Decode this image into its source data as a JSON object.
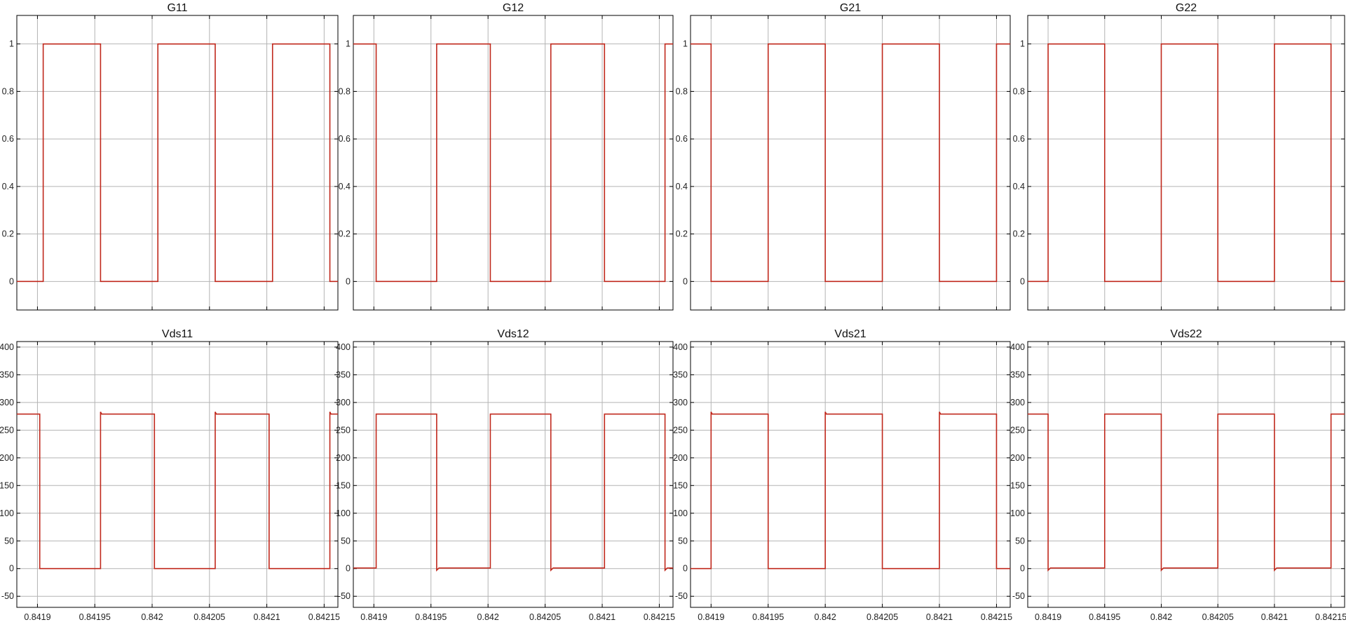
{
  "figure": {
    "background": "#ffffff",
    "trace_color": "#c0281c",
    "grid_color": "#b4b4b4",
    "axes_color": "#000000"
  },
  "chart_data": [
    {
      "type": "line",
      "title": "G11",
      "xlim": [
        0.841882,
        0.842162
      ],
      "ylim": [
        -0.12,
        1.12
      ],
      "yticks": [
        "0",
        "0.2",
        "0.4",
        "0.6",
        "0.8",
        "1"
      ],
      "xgrid": [
        0.8419,
        0.84195,
        0.842,
        0.84205,
        0.8421,
        0.84215
      ],
      "show_xtick_labels": false,
      "series": [
        {
          "x": [
            0.841882,
            0.841905,
            0.841905,
            0.841955,
            0.841955,
            0.842005,
            0.842005,
            0.842055,
            0.842055,
            0.842105,
            0.842105,
            0.842155,
            0.842155,
            0.842162
          ],
          "y": [
            0,
            0,
            1,
            1,
            0,
            0,
            1,
            1,
            0,
            0,
            1,
            1,
            0,
            0
          ]
        }
      ]
    },
    {
      "type": "line",
      "title": "G12",
      "xlim": [
        0.841882,
        0.842162
      ],
      "ylim": [
        -0.12,
        1.12
      ],
      "yticks": [
        "0",
        "0.2",
        "0.4",
        "0.6",
        "0.8",
        "1"
      ],
      "xgrid": [
        0.8419,
        0.84195,
        0.842,
        0.84205,
        0.8421,
        0.84215
      ],
      "show_xtick_labels": false,
      "series": [
        {
          "x": [
            0.841882,
            0.841902,
            0.841902,
            0.841955,
            0.841955,
            0.842002,
            0.842002,
            0.842055,
            0.842055,
            0.842102,
            0.842102,
            0.842155,
            0.842155,
            0.842162
          ],
          "y": [
            1,
            1,
            0,
            0,
            1,
            1,
            0,
            0,
            1,
            1,
            0,
            0,
            1,
            1
          ]
        }
      ]
    },
    {
      "type": "line",
      "title": "G21",
      "xlim": [
        0.841882,
        0.842162
      ],
      "ylim": [
        -0.12,
        1.12
      ],
      "yticks": [
        "0",
        "0.2",
        "0.4",
        "0.6",
        "0.8",
        "1"
      ],
      "xgrid": [
        0.8419,
        0.84195,
        0.842,
        0.84205,
        0.8421,
        0.84215
      ],
      "show_xtick_labels": false,
      "series": [
        {
          "x": [
            0.841882,
            0.8419,
            0.8419,
            0.84195,
            0.84195,
            0.842,
            0.842,
            0.84205,
            0.84205,
            0.8421,
            0.8421,
            0.84215,
            0.84215,
            0.842162
          ],
          "y": [
            1,
            1,
            0,
            0,
            1,
            1,
            0,
            0,
            1,
            1,
            0,
            0,
            1,
            1
          ]
        }
      ]
    },
    {
      "type": "line",
      "title": "G22",
      "xlim": [
        0.841882,
        0.842162
      ],
      "ylim": [
        -0.12,
        1.12
      ],
      "yticks": [
        "0",
        "0.2",
        "0.4",
        "0.6",
        "0.8",
        "1"
      ],
      "xgrid": [
        0.8419,
        0.84195,
        0.842,
        0.84205,
        0.8421,
        0.84215
      ],
      "show_xtick_labels": false,
      "series": [
        {
          "x": [
            0.841882,
            0.8419,
            0.8419,
            0.84195,
            0.84195,
            0.842,
            0.842,
            0.84205,
            0.84205,
            0.8421,
            0.8421,
            0.84215,
            0.84215,
            0.842162
          ],
          "y": [
            0,
            0,
            1,
            1,
            0,
            0,
            1,
            1,
            0,
            0,
            1,
            1,
            0,
            0
          ]
        }
      ]
    },
    {
      "type": "line",
      "title": "Vds11",
      "xlim": [
        0.841882,
        0.842162
      ],
      "ylim": [
        -70,
        410
      ],
      "yticks": [
        "-50",
        "0",
        "50",
        "100",
        "150",
        "200",
        "250",
        "300",
        "350",
        "400"
      ],
      "xgrid": [
        0.8419,
        0.84195,
        0.842,
        0.84205,
        0.8421,
        0.84215
      ],
      "xticklabels": [
        "0.8419",
        "0.84195",
        "0.842",
        "0.84205",
        "0.8421",
        "0.84215"
      ],
      "show_xtick_labels": true,
      "series": [
        {
          "x": [
            0.841882,
            0.841902,
            0.841902,
            0.841955,
            0.841955,
            0.841956,
            0.842002,
            0.842002,
            0.842055,
            0.842055,
            0.842056,
            0.842102,
            0.842102,
            0.842155,
            0.842155,
            0.842156,
            0.842162
          ],
          "y": [
            279,
            279,
            0,
            0,
            283,
            279,
            279,
            0,
            0,
            283,
            279,
            279,
            0,
            0,
            283,
            279,
            279
          ]
        }
      ]
    },
    {
      "type": "line",
      "title": "Vds12",
      "xlim": [
        0.841882,
        0.842162
      ],
      "ylim": [
        -70,
        410
      ],
      "yticks": [
        "-50",
        "0",
        "50",
        "100",
        "150",
        "200",
        "250",
        "300",
        "350",
        "400"
      ],
      "xgrid": [
        0.8419,
        0.84195,
        0.842,
        0.84205,
        0.8421,
        0.84215
      ],
      "xticklabels": [
        "0.8419",
        "0.84195",
        "0.842",
        "0.84205",
        "0.8421",
        "0.84215"
      ],
      "show_xtick_labels": true,
      "series": [
        {
          "x": [
            0.841882,
            0.841902,
            0.841902,
            0.841955,
            0.841955,
            0.841957,
            0.842002,
            0.842002,
            0.842055,
            0.842055,
            0.842057,
            0.842102,
            0.842102,
            0.842155,
            0.842155,
            0.842157,
            0.842162
          ],
          "y": [
            1,
            1,
            279,
            279,
            -3,
            1,
            1,
            279,
            279,
            -3,
            1,
            1,
            279,
            279,
            -3,
            1,
            1
          ]
        }
      ]
    },
    {
      "type": "line",
      "title": "Vds21",
      "xlim": [
        0.841882,
        0.842162
      ],
      "ylim": [
        -70,
        410
      ],
      "yticks": [
        "-50",
        "0",
        "50",
        "100",
        "150",
        "200",
        "250",
        "300",
        "350",
        "400"
      ],
      "xgrid": [
        0.8419,
        0.84195,
        0.842,
        0.84205,
        0.8421,
        0.84215
      ],
      "xticklabels": [
        "0.8419",
        "0.84195",
        "0.842",
        "0.84205",
        "0.8421",
        "0.84215"
      ],
      "show_xtick_labels": true,
      "series": [
        {
          "x": [
            0.841882,
            0.8419,
            0.8419,
            0.841901,
            0.84195,
            0.84195,
            0.842,
            0.842,
            0.842001,
            0.84205,
            0.84205,
            0.8421,
            0.8421,
            0.842101,
            0.84215,
            0.84215,
            0.842162
          ],
          "y": [
            0,
            0,
            283,
            279,
            279,
            0,
            0,
            283,
            279,
            279,
            0,
            0,
            283,
            279,
            279,
            0,
            0
          ]
        }
      ]
    },
    {
      "type": "line",
      "title": "Vds22",
      "xlim": [
        0.841882,
        0.842162
      ],
      "ylim": [
        -70,
        410
      ],
      "yticks": [
        "-50",
        "0",
        "50",
        "100",
        "150",
        "200",
        "250",
        "300",
        "350",
        "400"
      ],
      "xgrid": [
        0.8419,
        0.84195,
        0.842,
        0.84205,
        0.8421,
        0.84215
      ],
      "xticklabels": [
        "0.8419",
        "0.84195",
        "0.842",
        "0.84205",
        "0.8421",
        "0.84215"
      ],
      "show_xtick_labels": true,
      "series": [
        {
          "x": [
            0.841882,
            0.8419,
            0.8419,
            0.841902,
            0.84195,
            0.84195,
            0.842,
            0.842,
            0.842002,
            0.84205,
            0.84205,
            0.8421,
            0.8421,
            0.842102,
            0.84215,
            0.84215,
            0.842162
          ],
          "y": [
            279,
            279,
            -3,
            1,
            1,
            279,
            279,
            -3,
            1,
            1,
            279,
            279,
            -3,
            1,
            1,
            279,
            279
          ]
        }
      ]
    }
  ]
}
